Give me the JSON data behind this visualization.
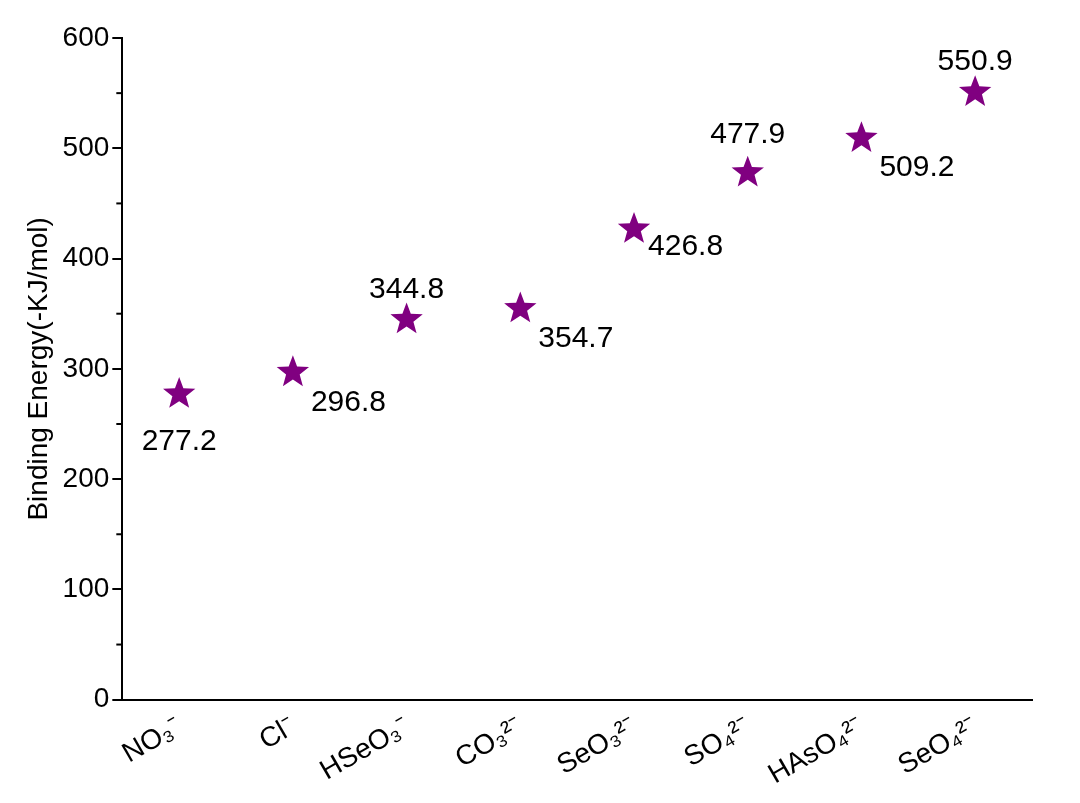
{
  "chart_data": {
    "type": "scatter",
    "ylabel": "Binding Energy(-KJ/mol)",
    "categories": [
      "NO₃⁻",
      "Cl⁻",
      "HSeO₃⁻",
      "CO₃²⁻",
      "SeO₃²⁻",
      "SO₄²⁻",
      "HAsO₄²⁻",
      "SeO₄²⁻"
    ],
    "values": [
      277.2,
      296.8,
      344.8,
      354.7,
      426.8,
      477.9,
      509.2,
      550.9
    ],
    "color": "#800080",
    "marker": "star",
    "data_labels": true,
    "grid": false,
    "legend": false,
    "ylim": [
      0,
      600
    ],
    "yticks": [
      0,
      100,
      200,
      300,
      400,
      500,
      600
    ]
  }
}
